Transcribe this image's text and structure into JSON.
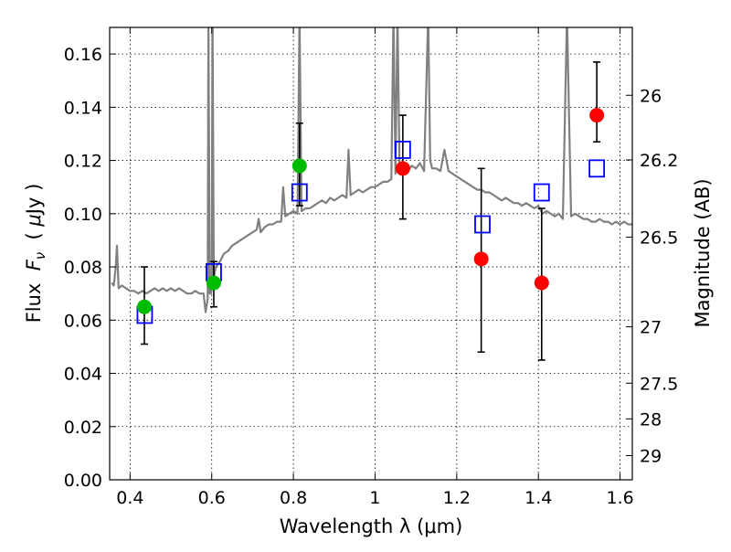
{
  "chart_data": {
    "type": "scatter",
    "xlabel": "Wavelength  λ (μm)",
    "ylabel_parts": [
      "Flux  ",
      "F",
      "ν",
      "  ( ",
      "μ",
      "Jy )"
    ],
    "ylabel_right": "Magnitude (AB)",
    "xlim": [
      0.35,
      1.63
    ],
    "ylim": [
      0.0,
      0.17
    ],
    "grid": true,
    "x_ticks": [
      0.4,
      0.6,
      0.8,
      1.0,
      1.2,
      1.4,
      1.6
    ],
    "x_tick_labels": [
      "0.4",
      "0.6",
      "0.8",
      "1",
      "1.2",
      "1.4",
      "1.6"
    ],
    "y_ticks": [
      0.0,
      0.02,
      0.04,
      0.06,
      0.08,
      0.1,
      0.12,
      0.14,
      0.16
    ],
    "y_tick_labels": [
      "0.00",
      "0.02",
      "0.04",
      "0.06",
      "0.08",
      "0.10",
      "0.12",
      "0.14",
      "0.16"
    ],
    "right_ticks": [
      {
        "label": "26",
        "flux": 0.1445
      },
      {
        "label": "26.2",
        "flux": 0.1202
      },
      {
        "label": "26.5",
        "flux": 0.0912
      },
      {
        "label": "27",
        "flux": 0.0575
      },
      {
        "label": "27.5",
        "flux": 0.0363
      },
      {
        "label": "28",
        "flux": 0.0229
      },
      {
        "label": "29",
        "flux": 0.0091
      }
    ],
    "spectrum": {
      "color": "#808080",
      "x": [
        0.355,
        0.36,
        0.365,
        0.368,
        0.372,
        0.38,
        0.39,
        0.4,
        0.41,
        0.42,
        0.43,
        0.44,
        0.45,
        0.46,
        0.47,
        0.48,
        0.49,
        0.5,
        0.51,
        0.52,
        0.53,
        0.54,
        0.55,
        0.56,
        0.57,
        0.58,
        0.585,
        0.59,
        0.592,
        0.595,
        0.598,
        0.6,
        0.602,
        0.605,
        0.61,
        0.62,
        0.63,
        0.64,
        0.65,
        0.66,
        0.67,
        0.68,
        0.69,
        0.7,
        0.71,
        0.715,
        0.72,
        0.73,
        0.74,
        0.75,
        0.76,
        0.77,
        0.775,
        0.78,
        0.79,
        0.8,
        0.81,
        0.815,
        0.82,
        0.83,
        0.84,
        0.85,
        0.86,
        0.87,
        0.88,
        0.89,
        0.9,
        0.91,
        0.92,
        0.93,
        0.935,
        0.94,
        0.95,
        0.96,
        0.97,
        0.98,
        0.99,
        1.0,
        1.01,
        1.02,
        1.03,
        1.04,
        1.045,
        1.05,
        1.055,
        1.06,
        1.07,
        1.08,
        1.09,
        1.1,
        1.11,
        1.12,
        1.13,
        1.135,
        1.14,
        1.15,
        1.16,
        1.17,
        1.18,
        1.19,
        1.2,
        1.21,
        1.22,
        1.23,
        1.24,
        1.25,
        1.26,
        1.27,
        1.28,
        1.29,
        1.3,
        1.31,
        1.32,
        1.33,
        1.34,
        1.35,
        1.36,
        1.37,
        1.38,
        1.39,
        1.4,
        1.41,
        1.42,
        1.43,
        1.44,
        1.45,
        1.46,
        1.47,
        1.48,
        1.49,
        1.5,
        1.51,
        1.52,
        1.53,
        1.54,
        1.55,
        1.56,
        1.57,
        1.58,
        1.59,
        1.6,
        1.61,
        1.62,
        1.63
      ],
      "y": [
        0.074,
        0.073,
        0.08,
        0.088,
        0.072,
        0.073,
        0.072,
        0.071,
        0.071,
        0.07,
        0.071,
        0.07,
        0.071,
        0.072,
        0.071,
        0.072,
        0.071,
        0.072,
        0.071,
        0.072,
        0.071,
        0.07,
        0.07,
        0.071,
        0.07,
        0.07,
        0.063,
        0.068,
        0.175,
        0.07,
        0.07,
        0.072,
        0.175,
        0.076,
        0.08,
        0.082,
        0.085,
        0.086,
        0.088,
        0.089,
        0.09,
        0.091,
        0.092,
        0.093,
        0.094,
        0.098,
        0.093,
        0.095,
        0.096,
        0.096,
        0.097,
        0.097,
        0.11,
        0.099,
        0.1,
        0.101,
        0.1,
        0.175,
        0.101,
        0.102,
        0.102,
        0.103,
        0.104,
        0.105,
        0.104,
        0.106,
        0.105,
        0.106,
        0.107,
        0.106,
        0.124,
        0.107,
        0.108,
        0.109,
        0.108,
        0.109,
        0.11,
        0.11,
        0.111,
        0.112,
        0.112,
        0.113,
        0.175,
        0.115,
        0.175,
        0.116,
        0.117,
        0.116,
        0.118,
        0.117,
        0.119,
        0.116,
        0.175,
        0.12,
        0.117,
        0.117,
        0.116,
        0.124,
        0.116,
        0.115,
        0.114,
        0.113,
        0.112,
        0.111,
        0.11,
        0.109,
        0.109,
        0.108,
        0.108,
        0.107,
        0.106,
        0.105,
        0.106,
        0.105,
        0.104,
        0.104,
        0.103,
        0.104,
        0.103,
        0.102,
        0.103,
        0.1,
        0.101,
        0.1,
        0.099,
        0.1,
        0.098,
        0.175,
        0.099,
        0.1,
        0.099,
        0.098,
        0.098,
        0.097,
        0.097,
        0.098,
        0.097,
        0.097,
        0.096,
        0.097,
        0.096,
        0.097,
        0.096,
        0.096
      ]
    },
    "squares": {
      "color": "#0000ff",
      "x": [
        0.436,
        0.605,
        0.815,
        1.068,
        1.263,
        1.408,
        1.543
      ],
      "y": [
        0.062,
        0.078,
        0.108,
        0.124,
        0.096,
        0.108,
        0.117
      ]
    },
    "green_points": {
      "color": "#00bb00",
      "x": [
        0.435,
        0.605,
        0.815
      ],
      "y": [
        0.065,
        0.074,
        0.118
      ]
    },
    "red_points": {
      "color": "#ff0000",
      "x": [
        1.068,
        1.26,
        1.408,
        1.543
      ],
      "y": [
        0.117,
        0.083,
        0.074,
        0.137
      ]
    },
    "error_bars": [
      {
        "x": 0.435,
        "low": 0.051,
        "high": 0.08
      },
      {
        "x": 0.605,
        "low": 0.065,
        "high": 0.082
      },
      {
        "x": 0.815,
        "low": 0.103,
        "high": 0.134
      },
      {
        "x": 1.068,
        "low": 0.098,
        "high": 0.137
      },
      {
        "x": 1.26,
        "low": 0.048,
        "high": 0.117
      },
      {
        "x": 1.408,
        "low": 0.045,
        "high": 0.102
      },
      {
        "x": 1.543,
        "low": 0.127,
        "high": 0.157
      }
    ]
  }
}
